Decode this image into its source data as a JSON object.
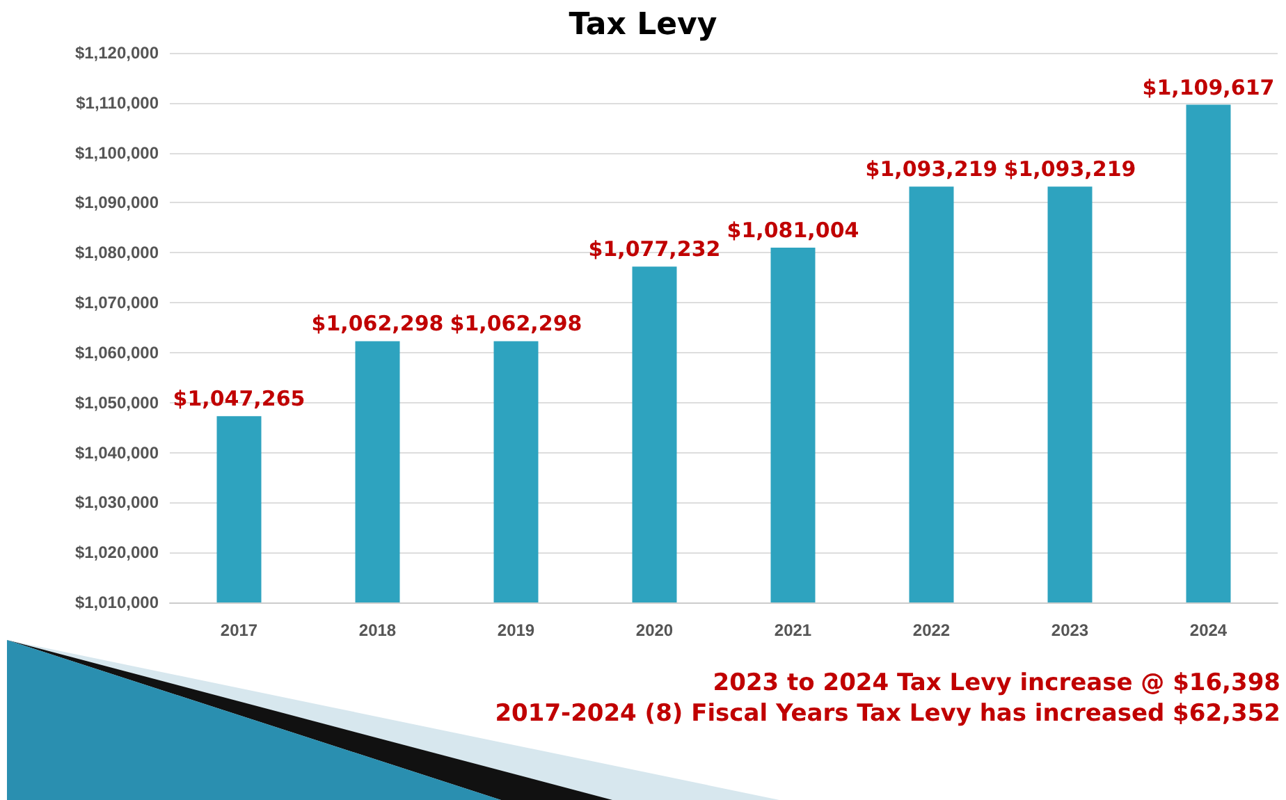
{
  "chart_data": {
    "type": "bar",
    "title": "Tax Levy",
    "categories": [
      "2017",
      "2018",
      "2019",
      "2020",
      "2021",
      "2022",
      "2023",
      "2024"
    ],
    "values": [
      1047265,
      1062298,
      1062298,
      1077232,
      1081004,
      1093219,
      1093219,
      1109617
    ],
    "value_labels": [
      "$1,047,265",
      "$1,062,298",
      "$1,062,298",
      "$1,077,232",
      "$1,081,004",
      "$1,093,219",
      "$1,093,219",
      "$1,109,617"
    ],
    "color": "#2ea3bf",
    "ylim": [
      1010000,
      1120000
    ],
    "yticks": [
      {
        "value": 1010000,
        "label": "$1,010,000"
      },
      {
        "value": 1020000,
        "label": "$1,020,000"
      },
      {
        "value": 1030000,
        "label": "$1,030,000"
      },
      {
        "value": 1040000,
        "label": "$1,040,000"
      },
      {
        "value": 1050000,
        "label": "$1,050,000"
      },
      {
        "value": 1060000,
        "label": "$1,060,000"
      },
      {
        "value": 1070000,
        "label": "$1,070,000"
      },
      {
        "value": 1080000,
        "label": "$1,080,000"
      },
      {
        "value": 1090000,
        "label": "$1,090,000"
      },
      {
        "value": 1100000,
        "label": "$1,100,000"
      },
      {
        "value": 1110000,
        "label": "$1,110,000"
      },
      {
        "value": 1120000,
        "label": "$1,120,000"
      }
    ],
    "grid": "y",
    "annotations": [
      "2023 to 2024 Tax Levy increase @ $16,398",
      "2017-2024 (8) Fiscal Years Tax Levy has increased $62,352"
    ]
  }
}
